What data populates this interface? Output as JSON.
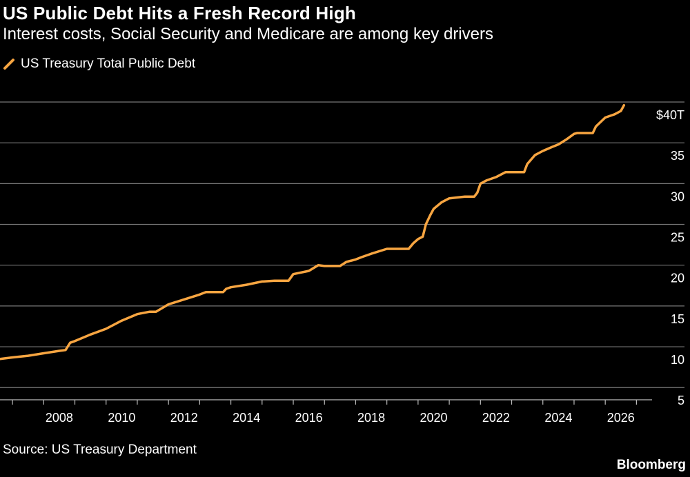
{
  "title": "US Public Debt Hits a Fresh Record High",
  "subtitle": "Interest costs, Social Security and Medicare are among key drivers",
  "source": "Source: US Treasury Department",
  "brand": "Bloomberg",
  "colors": {
    "line": "#f7a541",
    "grid": "#777777",
    "background": "#000000"
  },
  "chart_data": {
    "type": "line",
    "title": "US Public Debt Hits a Fresh Record High",
    "subtitle": "Interest costs, Social Security and Medicare are among key drivers",
    "legend": [
      "US Treasury Total Public Debt"
    ],
    "legend_position": "top-left",
    "grid": true,
    "xlim": [
      2006.6,
      2027.5
    ],
    "ylim": [
      3.5,
      40
    ],
    "x_ticks": [
      2008,
      2010,
      2012,
      2014,
      2016,
      2018,
      2020,
      2022,
      2024,
      2026
    ],
    "x_tick_labels": [
      "2008",
      "2010",
      "2012",
      "2014",
      "2016",
      "2018",
      "2020",
      "2022",
      "2024",
      "2026"
    ],
    "y_ticks": [
      5,
      10,
      15,
      20,
      25,
      30,
      35,
      40
    ],
    "y_tick_labels": [
      "5",
      "10",
      "15",
      "20",
      "25",
      "30",
      "35",
      "$40T"
    ],
    "series": [
      {
        "name": "US Treasury Total Public Debt",
        "x": [
          2006.6,
          2007.0,
          2007.5,
          2008.0,
          2008.5,
          2008.7,
          2008.85,
          2009.0,
          2009.5,
          2010.0,
          2010.5,
          2011.0,
          2011.4,
          2011.6,
          2012.0,
          2012.5,
          2013.0,
          2013.2,
          2013.5,
          2013.75,
          2013.85,
          2014.0,
          2014.5,
          2015.0,
          2015.4,
          2015.6,
          2015.85,
          2016.0,
          2016.5,
          2016.8,
          2017.0,
          2017.5,
          2017.7,
          2018.0,
          2018.2,
          2018.5,
          2019.0,
          2019.5,
          2019.7,
          2019.85,
          2020.0,
          2020.15,
          2020.25,
          2020.4,
          2020.5,
          2020.75,
          2021.0,
          2021.5,
          2021.8,
          2021.9,
          2022.0,
          2022.2,
          2022.5,
          2022.8,
          2023.0,
          2023.4,
          2023.5,
          2023.75,
          2024.0,
          2024.3,
          2024.5,
          2024.75,
          2025.0,
          2025.1,
          2025.5,
          2025.6,
          2025.7,
          2026.0,
          2026.3,
          2026.5,
          2026.6
        ],
        "y": [
          8.5,
          8.7,
          8.9,
          9.2,
          9.5,
          9.6,
          10.5,
          10.7,
          11.5,
          12.2,
          13.2,
          14.0,
          14.3,
          14.3,
          15.2,
          15.8,
          16.4,
          16.7,
          16.7,
          16.7,
          17.1,
          17.3,
          17.6,
          18.0,
          18.1,
          18.1,
          18.1,
          18.9,
          19.3,
          20.0,
          19.9,
          19.9,
          20.4,
          20.7,
          21.0,
          21.4,
          22.0,
          22.0,
          22.0,
          22.7,
          23.2,
          23.5,
          25.0,
          26.2,
          26.9,
          27.7,
          28.2,
          28.4,
          28.4,
          28.9,
          30.0,
          30.4,
          30.8,
          31.4,
          31.4,
          31.4,
          32.4,
          33.5,
          34.0,
          34.5,
          34.8,
          35.4,
          36.1,
          36.2,
          36.2,
          36.2,
          37.0,
          38.1,
          38.5,
          38.9,
          39.6
        ]
      }
    ]
  }
}
